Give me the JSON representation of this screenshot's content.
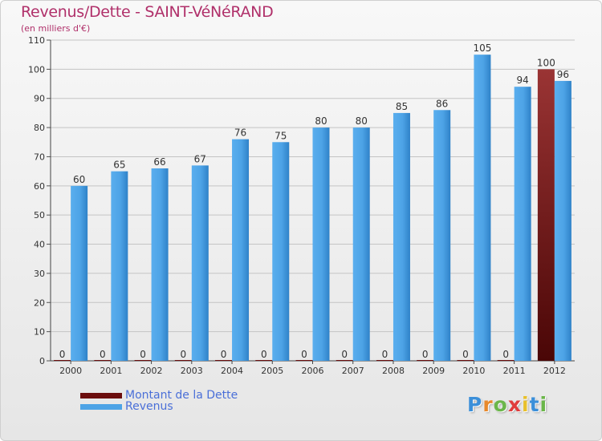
{
  "chart_data": {
    "type": "bar",
    "title": "Revenus/Dette - SAINT-VéNéRAND",
    "subtitle": "(en milliers d'€)",
    "categories": [
      "2000",
      "2001",
      "2002",
      "2003",
      "2004",
      "2005",
      "2006",
      "2007",
      "2008",
      "2009",
      "2010",
      "2011",
      "2012"
    ],
    "series": [
      {
        "name": "Montant de la Dette",
        "color": "#6b0d0d",
        "values": [
          0,
          0,
          0,
          0,
          0,
          0,
          0,
          0,
          0,
          0,
          0,
          0,
          100
        ]
      },
      {
        "name": "Revenus",
        "color": "#4da3e6",
        "values": [
          60,
          65,
          66,
          67,
          76,
          75,
          80,
          80,
          85,
          86,
          105,
          94,
          96
        ]
      }
    ],
    "ylim": [
      0,
      110
    ],
    "yticks": [
      0,
      10,
      20,
      30,
      40,
      50,
      60,
      70,
      80,
      90,
      100,
      110
    ],
    "grid": true,
    "legend_position": "bottom-left"
  },
  "logo": {
    "letters": [
      {
        "ch": "P",
        "color": "#3b8fd9"
      },
      {
        "ch": "r",
        "color": "#e8892b"
      },
      {
        "ch": "o",
        "color": "#6bb64a"
      },
      {
        "ch": "x",
        "color": "#e03c3c"
      },
      {
        "ch": "i",
        "color": "#e8c02b"
      },
      {
        "ch": "t",
        "color": "#3b8fd9"
      },
      {
        "ch": "i",
        "color": "#6bb64a"
      }
    ]
  }
}
